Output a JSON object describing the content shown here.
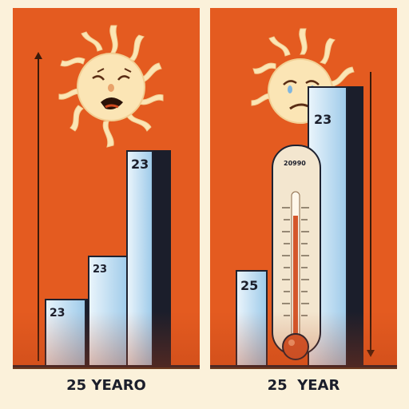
{
  "left_panel": {
    "bars": [
      {
        "label": "23"
      },
      {
        "label": "23"
      },
      {
        "label": "23"
      }
    ],
    "caption": "25 YEARO"
  },
  "right_panel": {
    "bars": [
      {
        "label": "25"
      },
      {
        "label": "23"
      }
    ],
    "thermometer_label": "20990",
    "caption": "25  YEAR"
  },
  "colors": {
    "background": "#fbf1da",
    "panel": "#e45b20",
    "sun": "#fbe5b5",
    "bar_light": "#9fcbea",
    "bar_dark": "#1b1e2b"
  },
  "icons": [
    "crying-sun-icon",
    "thermometer-icon",
    "double-arrow-icon"
  ]
}
